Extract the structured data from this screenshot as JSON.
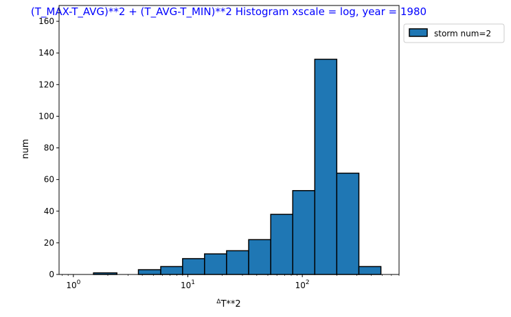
{
  "chart_data": {
    "type": "bar",
    "title": "(T_MAX-T_AVG)**2 + (T_AVG-T_MIN)**2 Histogram xscale = log, year = 1980",
    "xlabel": "ΔT**2",
    "ylabel": "num",
    "xscale": "log",
    "xlim": [
      0.75,
      700
    ],
    "ylim": [
      0,
      170
    ],
    "x_ticks": [
      1,
      10,
      100
    ],
    "x_tick_labels": [
      "10",
      "10",
      "10"
    ],
    "x_tick_exponents": [
      "0",
      "1",
      "2"
    ],
    "y_ticks": [
      0,
      20,
      40,
      60,
      80,
      100,
      120,
      140,
      160
    ],
    "y_tick_labels": [
      "0",
      "20",
      "40",
      "60",
      "80",
      "100",
      "120",
      "140",
      "160"
    ],
    "bin_edges": [
      1.0,
      1.5,
      2.4,
      3.7,
      5.8,
      9.0,
      14.0,
      21.8,
      34.0,
      53.0,
      82.5,
      128.5,
      200.0,
      312.0,
      486.0
    ],
    "series": [
      {
        "name": "storm num=2",
        "values": [
          0,
          1,
          0,
          3,
          5,
          10,
          13,
          15,
          22,
          38,
          53,
          136,
          64,
          5
        ]
      }
    ],
    "legend": {
      "position": "outside-top-right"
    },
    "grid": false,
    "colors": {
      "bar_fill": "#1f77b4",
      "bar_edge": "#000000",
      "title": "#0000ff"
    }
  }
}
